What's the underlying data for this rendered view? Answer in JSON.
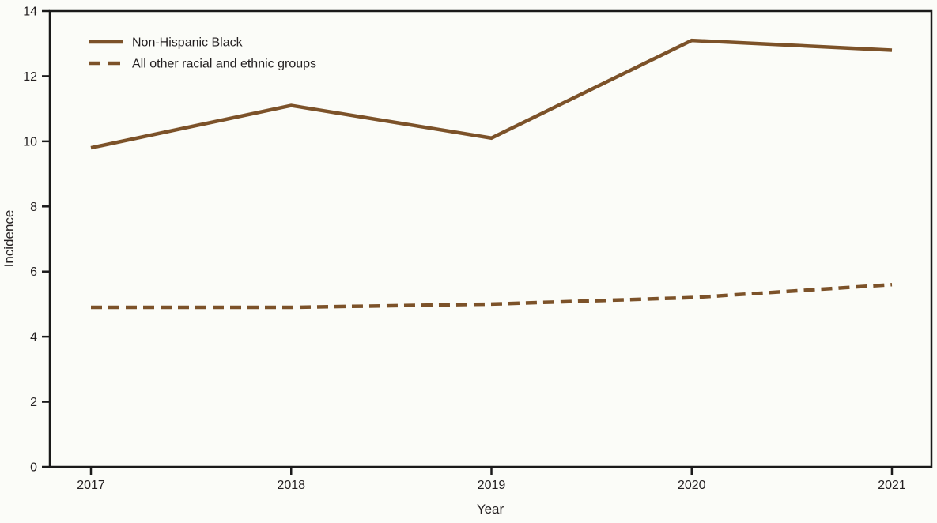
{
  "figure": {
    "background": "#fbfcf8",
    "line_color": "#7C5229",
    "axis_color": "#1a1a1a",
    "text_color": "#231f20"
  },
  "chart_data": {
    "type": "line",
    "title": "",
    "xlabel": "Year",
    "ylabel": "Incidence",
    "x": [
      "2017",
      "2018",
      "2019",
      "2020",
      "2021"
    ],
    "ylim": [
      0,
      14
    ],
    "yticks": [
      0,
      2,
      4,
      6,
      8,
      10,
      12,
      14
    ],
    "grid": false,
    "legend_position": "inside-top-left",
    "series": [
      {
        "name": "Non-Hispanic Black",
        "style": "solid",
        "values": [
          9.8,
          11.1,
          10.1,
          13.1,
          12.8
        ]
      },
      {
        "name": "All other racial and ethnic groups",
        "style": "dashed",
        "values": [
          4.9,
          4.9,
          5.0,
          5.2,
          5.6
        ]
      }
    ]
  }
}
